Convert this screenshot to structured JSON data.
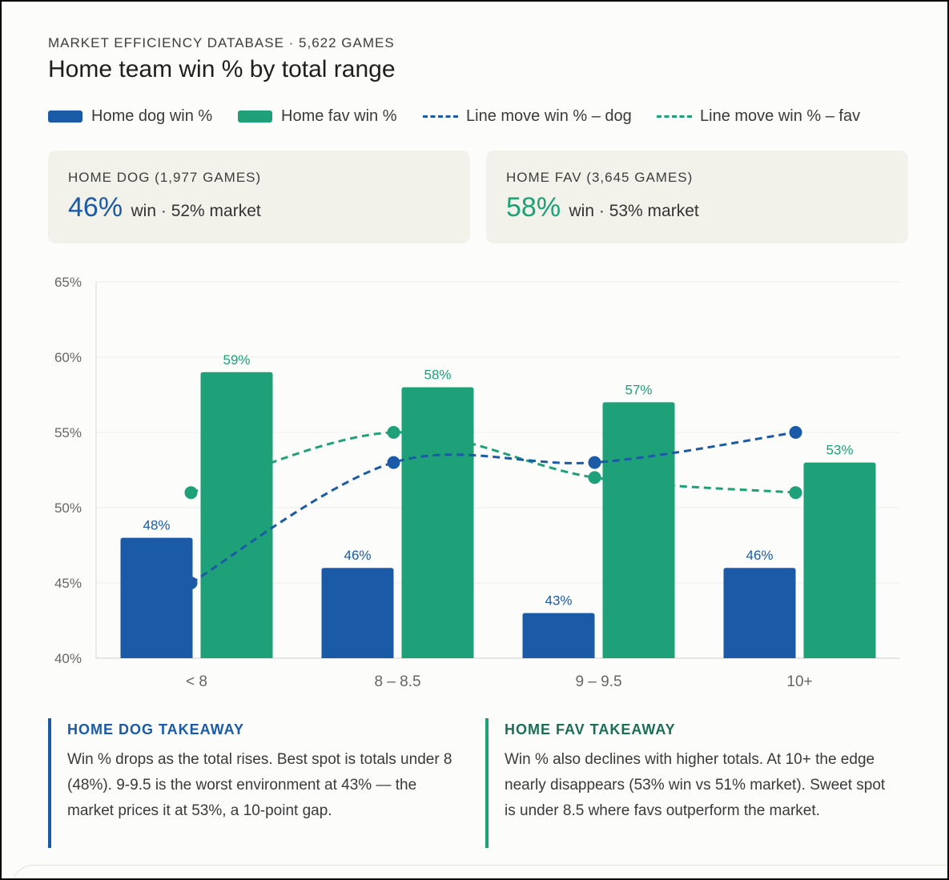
{
  "header": {
    "eyebrow": "MARKET EFFICIENCY DATABASE · 5,622 GAMES",
    "title": "Home team win % by total range"
  },
  "colors": {
    "dog": "#1b5aa6",
    "fav": "#1ea078",
    "grid": "#ebebeb",
    "axis_text": "#666666"
  },
  "legend": [
    {
      "label": "Home dog win %",
      "type": "bar",
      "color": "#1b5aa6"
    },
    {
      "label": "Home fav win %",
      "type": "bar",
      "color": "#1ea078"
    },
    {
      "label": "Line move win % – dog",
      "type": "dashed",
      "color": "#1b5aa6"
    },
    {
      "label": "Line move win % – fav",
      "type": "dashed",
      "color": "#1ea078"
    }
  ],
  "cards": [
    {
      "label": "HOME DOG (1,977 GAMES)",
      "value": "46%",
      "sub": "win · 52% market"
    },
    {
      "label": "HOME FAV (3,645 GAMES)",
      "value": "58%",
      "sub": "win · 53% market"
    }
  ],
  "chart_data": {
    "type": "bar",
    "categories": [
      "< 8",
      "8 – 8.5",
      "9 – 9.5",
      "10+"
    ],
    "ylim": [
      40,
      65
    ],
    "yticks": [
      40,
      45,
      50,
      55,
      60,
      65
    ],
    "ytick_labels": [
      "40%",
      "45%",
      "50%",
      "55%",
      "60%",
      "65%"
    ],
    "grid": true,
    "legend_position": "top",
    "series": [
      {
        "name": "Home dog win %",
        "type": "bar",
        "values": [
          48,
          46,
          43,
          46
        ],
        "labels": [
          "48%",
          "46%",
          "43%",
          "46%"
        ]
      },
      {
        "name": "Home fav win %",
        "type": "bar",
        "values": [
          59,
          58,
          57,
          53
        ],
        "labels": [
          "59%",
          "58%",
          "57%",
          "53%"
        ]
      },
      {
        "name": "Line move win % – dog",
        "type": "line",
        "style": "dashed",
        "values": [
          45,
          53,
          53,
          55
        ]
      },
      {
        "name": "Line move win % – fav",
        "type": "line",
        "style": "dashed",
        "values": [
          51,
          55,
          52,
          51
        ]
      }
    ]
  },
  "takeaways": [
    {
      "head": "HOME DOG TAKEAWAY",
      "body": "Win % drops as the total rises. Best spot is totals under 8 (48%). 9-9.5 is the worst environment at 43% — the market prices it at 53%, a 10-point gap."
    },
    {
      "head": "HOME FAV TAKEAWAY",
      "body": "Win % also declines with higher totals. At 10+ the edge nearly disappears (53% win vs 51% market). Sweet spot is under 8.5 where favs outperform the market."
    }
  ]
}
